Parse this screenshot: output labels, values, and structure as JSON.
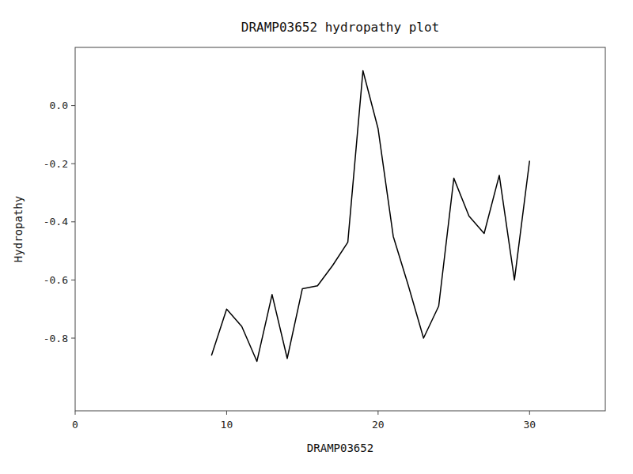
{
  "chart_data": {
    "type": "line",
    "title": "DRAMP03652 hydropathy plot",
    "xlabel": "DRAMP03652",
    "ylabel": "Hydropathy",
    "x": [
      9,
      10,
      11,
      12,
      13,
      14,
      15,
      16,
      17,
      18,
      19,
      20,
      21,
      22,
      23,
      24,
      25,
      26,
      27,
      28,
      29,
      30
    ],
    "values": [
      -0.86,
      -0.7,
      -0.76,
      -0.88,
      -0.65,
      -0.87,
      -0.63,
      -0.62,
      -0.55,
      -0.47,
      0.12,
      -0.08,
      -0.45,
      -0.62,
      -0.8,
      -0.69,
      -0.25,
      -0.38,
      -0.44,
      -0.24,
      -0.6,
      -0.19
    ],
    "color": "black",
    "xlim": [
      0,
      35
    ],
    "ylim": [
      -1.05,
      0.2
    ],
    "xticks": [
      0,
      10,
      20,
      30
    ],
    "yticks": [
      {
        "value": 0.0,
        "label": "0.0"
      },
      -0.2,
      -0.4,
      -0.6,
      -0.8
    ],
    "grid": false
  }
}
